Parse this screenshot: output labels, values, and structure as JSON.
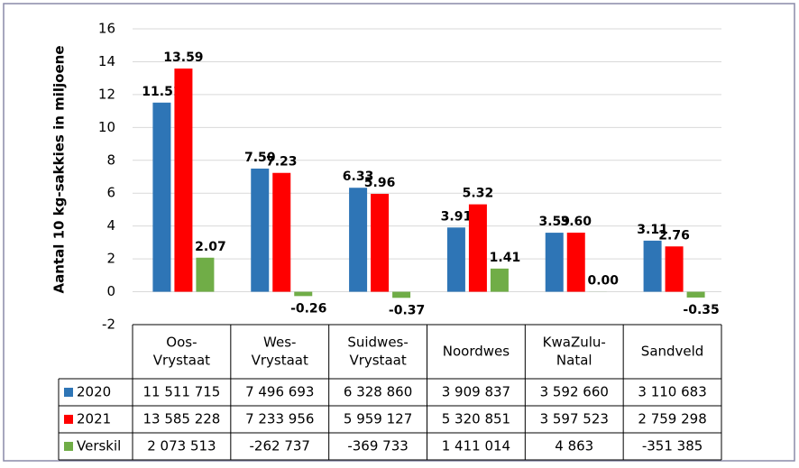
{
  "chart_data": {
    "type": "bar",
    "y_label": "Aantal 10 kg-sakkies in miljoene",
    "categories": [
      [
        "Oos-",
        "Vrystaat"
      ],
      [
        "Wes-",
        "Vrystaat"
      ],
      [
        "Suidwes-",
        "Vrystaat"
      ],
      [
        "Noordwes"
      ],
      [
        "KwaZulu-",
        "Natal"
      ],
      [
        "Sandveld"
      ]
    ],
    "ylim": [
      -2,
      16
    ],
    "yticks": [
      -2,
      0,
      2,
      4,
      6,
      8,
      10,
      12,
      14,
      16
    ],
    "grid": true,
    "series": [
      {
        "name": "2020",
        "color": "#2e75b6",
        "values": [
          11.511715,
          7.496693,
          6.32886,
          3.909837,
          3.59266,
          3.110683
        ],
        "value_labels": [
          "11.51",
          "7.50",
          "6.33",
          "3.91",
          "3.59",
          "3.11"
        ],
        "table_values": [
          "11 511 715",
          "7 496 693",
          "6 328 860",
          "3 909 837",
          "3 592 660",
          "3 110 683"
        ]
      },
      {
        "name": "2021",
        "color": "#ff0000",
        "values": [
          13.585228,
          7.233956,
          5.959127,
          5.320851,
          3.597523,
          2.759298
        ],
        "value_labels": [
          "13.59",
          "7.23",
          "5.96",
          "5.32",
          "3.60",
          "2.76"
        ],
        "table_values": [
          "13 585 228",
          "7 233 956",
          "5 959 127",
          "5 320 851",
          "3 597 523",
          "2 759 298"
        ]
      },
      {
        "name": "Verskil",
        "color": "#70ad47",
        "values": [
          2.073513,
          -0.262737,
          -0.369733,
          1.411014,
          0.004863,
          -0.351385
        ],
        "value_labels": [
          "2.07",
          "-0.26",
          "-0.37",
          "1.41",
          "0.00",
          "-0.35"
        ],
        "table_values": [
          "2 073 513",
          "-262 737",
          "-369 733",
          "1 411 014",
          "4 863",
          "-351 385"
        ]
      }
    ]
  }
}
